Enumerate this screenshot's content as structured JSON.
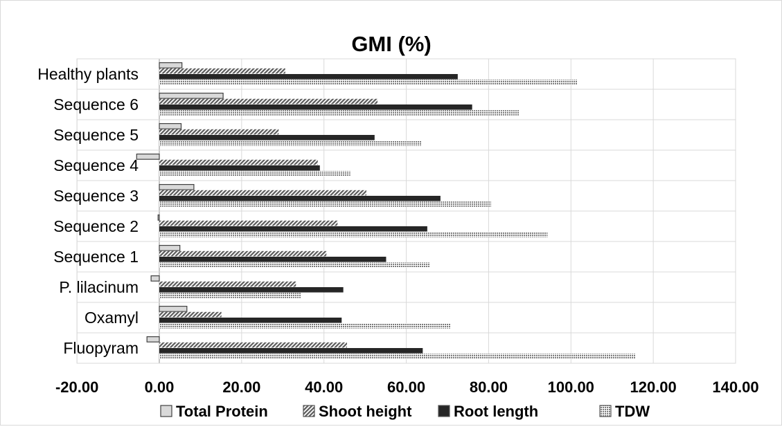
{
  "chart_data": {
    "type": "bar",
    "orientation": "horizontal",
    "title": "GMI (%)",
    "xlabel": "",
    "ylabel": "",
    "xlim": [
      -20,
      140
    ],
    "x_ticks": [
      "-20.00",
      "0.00",
      "20.00",
      "40.00",
      "60.00",
      "80.00",
      "100.00",
      "120.00",
      "140.00"
    ],
    "grid": true,
    "legend_position": "bottom",
    "categories": [
      "Healthy plants",
      "Sequence 6",
      "Sequence 5",
      "Sequence 4",
      "Sequence 3",
      "Sequence 2",
      "Sequence 1",
      "P. lilacinum",
      "Oxamyl",
      "Fluopyram"
    ],
    "series": [
      {
        "name": "Total Protein",
        "pattern": "outline",
        "color": "#d9d9d9",
        "values": [
          5.5,
          15.5,
          5.3,
          -5.5,
          8.4,
          -0.3,
          5.0,
          -2.0,
          6.7,
          -3.0
        ]
      },
      {
        "name": "Shoot height",
        "pattern": "diagonal-hatch",
        "color": "#595959",
        "values": [
          30.6,
          53.0,
          29.0,
          38.5,
          50.3,
          43.3,
          40.6,
          33.2,
          15.1,
          45.6
        ]
      },
      {
        "name": "Root length",
        "pattern": "solid",
        "color": "#262626",
        "values": [
          72.5,
          76.0,
          52.3,
          39.0,
          68.3,
          65.1,
          55.1,
          44.7,
          44.3,
          64.0
        ]
      },
      {
        "name": "TDW",
        "pattern": "dotted",
        "color": "#a6a6a6",
        "values": [
          101.6,
          87.5,
          63.7,
          46.4,
          80.6,
          94.3,
          65.8,
          34.5,
          70.8,
          115.6
        ]
      }
    ]
  }
}
